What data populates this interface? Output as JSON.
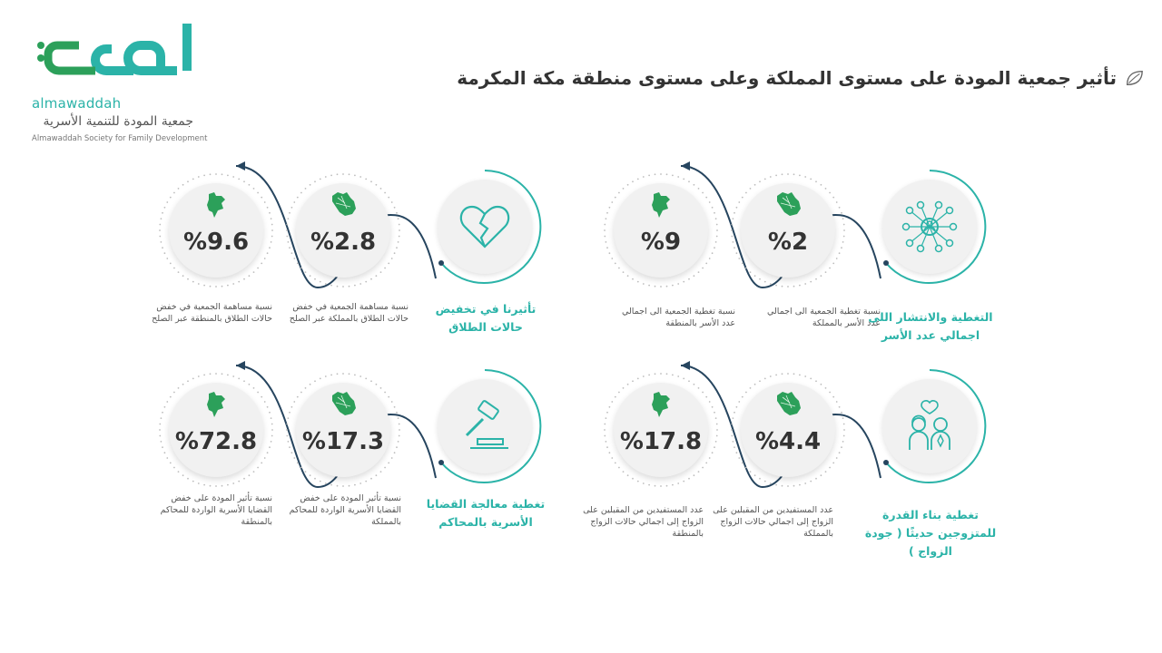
{
  "logo": {
    "arabic_mark": "المودة",
    "latin": "almawaddah",
    "arabic_name": "جمعية المودة للتنمية الأسرية",
    "english_name": "Almawaddah Society for Family Development"
  },
  "page": {
    "title": "تأثير جمعية المودة على مستوى المملكة وعلى مستوى منطقة مكة المكرمة"
  },
  "colors": {
    "teal": "#2bb3a8",
    "green": "#2ca05a",
    "navy": "#26455f",
    "text": "#333333"
  },
  "sections": [
    {
      "title": "التغطية والانتشار اللى اجمالي عدد الأسر",
      "icon": "network-people-icon",
      "stats": [
        {
          "value": "%2",
          "caption": "نسبة تغطية الجمعية الى اجمالي عدد الأسر بالمملكة",
          "map": "saudi-map-icon"
        },
        {
          "value": "%9",
          "caption": "نسبة تغطية الجمعية الى اجمالي عدد الأسر بالمنطقة",
          "map": "makkah-region-map-icon"
        }
      ]
    },
    {
      "title": "تأثيرنا في تخفيض حالات الطلاق",
      "icon": "broken-heart-icon",
      "stats": [
        {
          "value": "%2.8",
          "caption": "نسبة مساهمة الجمعية في خفض حالات الطلاق بالمملكة عبر الصلح",
          "map": "saudi-map-icon"
        },
        {
          "value": "%9.6",
          "caption": "نسبة مساهمة الجمعية في خفض حالات الطلاق بالمنطقة عبر الصلح",
          "map": "makkah-region-map-icon"
        }
      ]
    },
    {
      "title": "تغطية بناء القدرة للمتزوجين حديثًا ( جودة الزواج )",
      "icon": "couple-icon",
      "stats": [
        {
          "value": "%4.4",
          "caption": "عدد المستفيدين من المقبلين على الزواج إلى اجمالي حالات الزواج بالمملكة",
          "map": "saudi-map-icon"
        },
        {
          "value": "%17.8",
          "caption": "عدد المستفيدين من المقبلين على الزواج إلى اجمالي حالات الزواج بالمنطقة",
          "map": "makkah-region-map-icon"
        }
      ]
    },
    {
      "title": "تغطية معالجة القضايا الأسرية بالمحاكم",
      "icon": "gavel-icon",
      "stats": [
        {
          "value": "%17.3",
          "caption": "نسبة تأثير المودة على خفض القضايا الأسرية الواردة للمحاكم بالمملكة",
          "map": "saudi-map-icon"
        },
        {
          "value": "%72.8",
          "caption": "نسبة تأثير المودة على خفض القضايا الأسرية الواردة للمحاكم بالمنطقة",
          "map": "makkah-region-map-icon"
        }
      ]
    }
  ]
}
